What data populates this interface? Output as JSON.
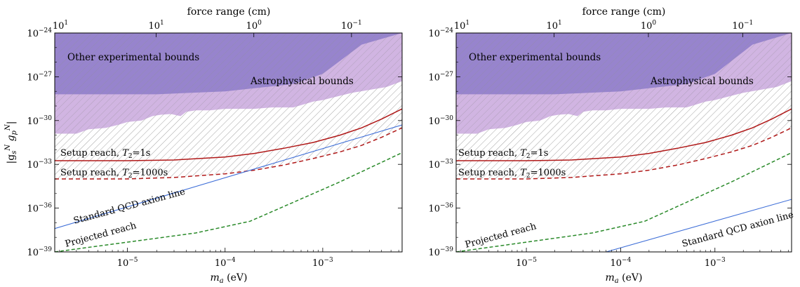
{
  "chart_data": [
    {
      "type": "line",
      "id": "left",
      "xlabel": "m_a (eV)",
      "ylabel": "|g_s^N g_p^N|",
      "top_xlabel": "force range (cm)",
      "xscale": "log",
      "yscale": "log",
      "xlim": [
        1.8e-06,
        0.0065
      ],
      "ylim": [
        1e-39,
        1e-24
      ],
      "x_ticks": [
        {
          "v": 1e-05,
          "b": "10",
          "e": "−5"
        },
        {
          "v": 0.0001,
          "b": "10",
          "e": "−4"
        },
        {
          "v": 0.001,
          "b": "10",
          "e": "−3"
        }
      ],
      "y_ticks": [
        {
          "v": -39,
          "b": "10",
          "e": "−39"
        },
        {
          "v": -36,
          "b": "10",
          "e": "−36"
        },
        {
          "v": -33,
          "b": "10",
          "e": "−33"
        },
        {
          "v": -30,
          "b": "10",
          "e": "−30"
        },
        {
          "v": -27,
          "b": "10",
          "e": "−27"
        },
        {
          "v": -24,
          "b": "10",
          "e": "−24"
        }
      ],
      "top_ticks": [
        {
          "v": 1.97e-05,
          "b": "10",
          "e": "1"
        },
        {
          "v": 0.000197,
          "b": "10",
          "e": "0"
        },
        {
          "v": 0.00197,
          "b": "10",
          "e": "−1"
        }
      ],
      "regions": [
        {
          "name": "Other experimental bounds",
          "color": "#8878c8",
          "x": [
            1.8e-06,
            2e-05,
            0.0001,
            0.0005,
            0.001,
            0.0025,
            0.0065
          ],
          "y": [
            -28.2,
            -28.2,
            -28.0,
            -27.5,
            -26.8,
            -24.8,
            -24.0
          ]
        },
        {
          "name": "Astrophysical bounds",
          "color": "#c9a8dd",
          "x": [
            1.8e-06,
            3e-06,
            4e-06,
            6e-06,
            8e-06,
            1e-05,
            1.4e-05,
            1.8e-05,
            2.2e-05,
            2.8e-05,
            3.5e-05,
            4e-05,
            5e-05,
            7e-05,
            0.0001,
            0.00015,
            0.0002,
            0.0003,
            0.0005,
            0.0008,
            0.001,
            0.0015,
            0.002,
            0.003,
            0.0045,
            0.0065
          ],
          "y": [
            -30.9,
            -30.9,
            -30.6,
            -30.5,
            -30.3,
            -30.1,
            -30.0,
            -29.7,
            -29.6,
            -29.55,
            -29.7,
            -29.4,
            -29.3,
            -29.3,
            -29.2,
            -29.2,
            -29.2,
            -29.1,
            -29.1,
            -28.7,
            -28.6,
            -28.3,
            -28.1,
            -27.9,
            -27.7,
            -27.3
          ]
        }
      ],
      "series": [
        {
          "name": "Setup reach, T2=1s",
          "color": "#b01818",
          "dash": "none",
          "x": [
            1.8e-06,
            1e-05,
            3e-05,
            0.0001,
            0.0002,
            0.0004,
            0.0008,
            0.0015,
            0.0025,
            0.004,
            0.0065
          ],
          "y": [
            -32.75,
            -32.75,
            -32.7,
            -32.5,
            -32.25,
            -31.9,
            -31.5,
            -31.0,
            -30.5,
            -29.9,
            -29.2
          ]
        },
        {
          "name": "Setup reach, T2=1000s",
          "color": "#b01818",
          "dash": "6,4",
          "x": [
            1.8e-06,
            1e-05,
            3e-05,
            0.0001,
            0.0002,
            0.0004,
            0.0008,
            0.0015,
            0.0025,
            0.004,
            0.0065
          ],
          "y": [
            -34.0,
            -34.0,
            -33.9,
            -33.65,
            -33.4,
            -33.05,
            -32.6,
            -32.15,
            -31.7,
            -31.15,
            -30.5
          ]
        },
        {
          "name": "Standard QCD axion line",
          "color": "#3f6fd8",
          "dash": "none",
          "x": [
            1.8e-06,
            0.0065
          ],
          "y": [
            -37.4,
            -30.3
          ]
        },
        {
          "name": "Projected reach",
          "color": "#2a8a2a",
          "dash": "5,3",
          "x": [
            1.8e-06,
            5e-05,
            0.00018,
            0.0005,
            0.0015,
            0.0065
          ],
          "y": [
            -39.0,
            -37.7,
            -36.9,
            -35.6,
            -34.2,
            -32.2
          ]
        }
      ],
      "labels": {
        "other": "Other experimental bounds",
        "astro": "Astrophysical bounds",
        "setup1": "Setup reach, ",
        "setup1_t": "T",
        "setup1_sub": "2",
        "setup1_val": "=1s",
        "setup2": "Setup reach, ",
        "setup2_t": "T",
        "setup2_sub": "2",
        "setup2_val": "=1000s",
        "qcd": "Standard QCD axion line",
        "proj": "Projected reach"
      }
    },
    {
      "type": "line",
      "id": "right",
      "xlabel": "m_a (eV)",
      "top_xlabel": "force range (cm)",
      "xscale": "log",
      "yscale": "log",
      "xlim": [
        1.8e-06,
        0.0065
      ],
      "ylim": [
        1e-39,
        1e-24
      ],
      "x_ticks": [
        {
          "v": 1e-05,
          "b": "10",
          "e": "−5"
        },
        {
          "v": 0.0001,
          "b": "10",
          "e": "−4"
        },
        {
          "v": 0.001,
          "b": "10",
          "e": "−3"
        }
      ],
      "y_ticks": [
        {
          "v": -39,
          "b": "10",
          "e": "−39"
        },
        {
          "v": -36,
          "b": "10",
          "e": "−36"
        },
        {
          "v": -33,
          "b": "10",
          "e": "−33"
        },
        {
          "v": -30,
          "b": "10",
          "e": "−30"
        },
        {
          "v": -27,
          "b": "10",
          "e": "−27"
        },
        {
          "v": -24,
          "b": "10",
          "e": "−24"
        }
      ],
      "top_ticks": [
        {
          "v": 1.97e-05,
          "b": "10",
          "e": "1"
        },
        {
          "v": 0.000197,
          "b": "10",
          "e": "0"
        },
        {
          "v": 0.00197,
          "b": "10",
          "e": "−1"
        }
      ],
      "regions": [
        {
          "name": "Other experimental bounds",
          "color": "#8878c8",
          "x": [
            1.8e-06,
            2e-05,
            0.0001,
            0.0005,
            0.001,
            0.0025,
            0.0065
          ],
          "y": [
            -28.2,
            -28.2,
            -28.0,
            -27.5,
            -26.8,
            -24.8,
            -24.0
          ]
        },
        {
          "name": "Astrophysical bounds",
          "color": "#c9a8dd",
          "x": [
            1.8e-06,
            3e-06,
            4e-06,
            6e-06,
            8e-06,
            1e-05,
            1.4e-05,
            1.8e-05,
            2.2e-05,
            2.8e-05,
            3.5e-05,
            4e-05,
            5e-05,
            7e-05,
            0.0001,
            0.00015,
            0.0002,
            0.0003,
            0.0005,
            0.0008,
            0.001,
            0.0015,
            0.002,
            0.003,
            0.0045,
            0.0065
          ],
          "y": [
            -30.9,
            -30.9,
            -30.6,
            -30.5,
            -30.3,
            -30.1,
            -30.0,
            -29.7,
            -29.6,
            -29.55,
            -29.7,
            -29.4,
            -29.3,
            -29.3,
            -29.2,
            -29.2,
            -29.2,
            -29.1,
            -29.1,
            -28.7,
            -28.6,
            -28.3,
            -28.1,
            -27.9,
            -27.7,
            -27.3
          ]
        }
      ],
      "series": [
        {
          "name": "Setup reach, T2=1s",
          "color": "#b01818",
          "dash": "none",
          "x": [
            1.8e-06,
            1e-05,
            3e-05,
            0.0001,
            0.0002,
            0.0004,
            0.0008,
            0.0015,
            0.0025,
            0.004,
            0.0065
          ],
          "y": [
            -32.75,
            -32.75,
            -32.7,
            -32.5,
            -32.25,
            -31.9,
            -31.5,
            -31.0,
            -30.5,
            -29.9,
            -29.2
          ]
        },
        {
          "name": "Setup reach, T2=1000s",
          "color": "#b01818",
          "dash": "6,4",
          "x": [
            1.8e-06,
            1e-05,
            3e-05,
            0.0001,
            0.0002,
            0.0004,
            0.0008,
            0.0015,
            0.0025,
            0.004,
            0.0065
          ],
          "y": [
            -34.0,
            -34.0,
            -33.9,
            -33.65,
            -33.4,
            -33.05,
            -32.6,
            -32.15,
            -31.7,
            -31.15,
            -30.5
          ]
        },
        {
          "name": "Standard QCD axion line",
          "color": "#3f6fd8",
          "dash": "none",
          "x": [
            7e-05,
            0.0065
          ],
          "y": [
            -39.0,
            -35.4
          ]
        },
        {
          "name": "Projected reach",
          "color": "#2a8a2a",
          "dash": "5,3",
          "x": [
            1.8e-06,
            5e-05,
            0.00018,
            0.0005,
            0.0015,
            0.0065
          ],
          "y": [
            -39.0,
            -37.7,
            -36.9,
            -35.6,
            -34.2,
            -32.2
          ]
        }
      ],
      "labels": {
        "other": "Other experimental bounds",
        "astro": "Astrophysical bounds",
        "setup1": "Setup reach, ",
        "setup1_t": "T",
        "setup1_sub": "2",
        "setup1_val": "=1s",
        "setup2": "Setup reach, ",
        "setup2_t": "T",
        "setup2_sub": "2",
        "setup2_val": "=1000s",
        "qcd": "Standard QCD axion line",
        "proj": "Projected reach"
      }
    }
  ],
  "text": {
    "top_title": "force range (cm)",
    "x_title_m": "m",
    "x_title_sub": "a",
    "x_title_unit": " (eV)",
    "y_title_a": "|g",
    "y_title_s": "s",
    "y_title_N1": "N",
    "y_title_g": " g",
    "y_title_p": "p",
    "y_title_N2": "N",
    "y_title_end": "|"
  }
}
